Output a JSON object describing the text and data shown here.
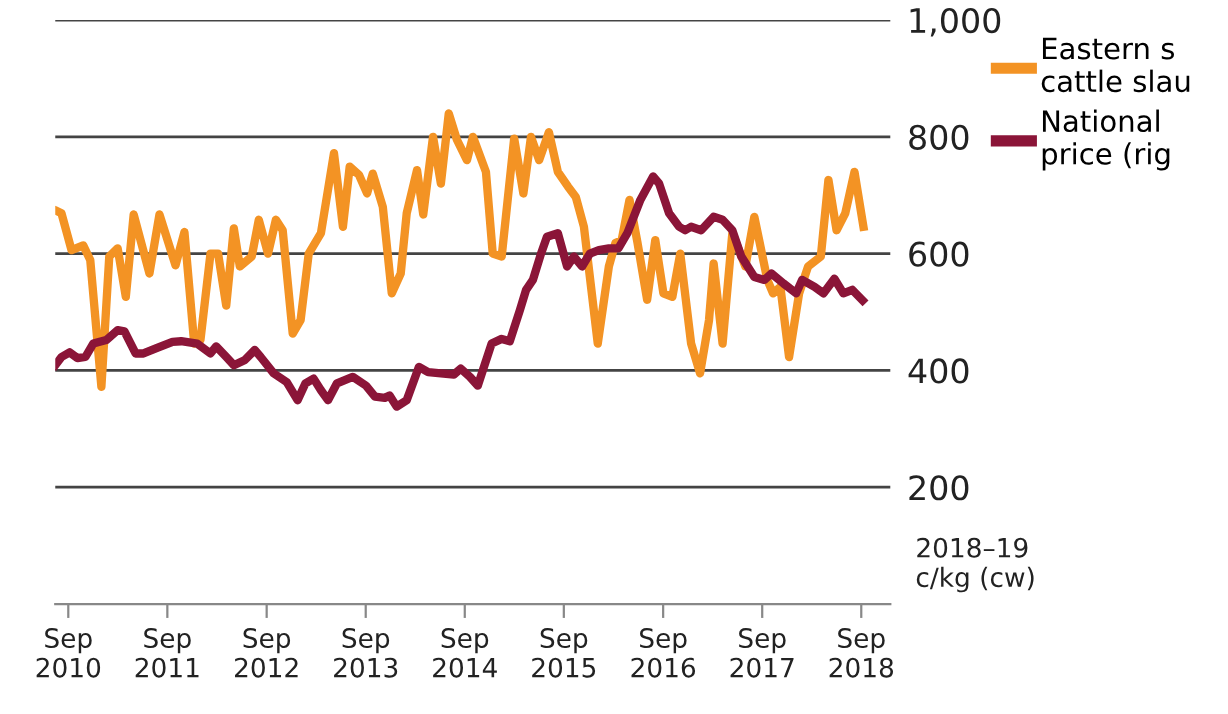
{
  "chart_data": {
    "type": "line",
    "ylabel": "2018–19\nc/kg (cw)",
    "xlim": [
      "2010-07-15",
      "2018-12-17"
    ],
    "xticks": [
      {
        "value": "2010-09-01",
        "label": "Sep\n2010"
      },
      {
        "value": "2011-09-01",
        "label": "Sep\n2011"
      },
      {
        "value": "2012-09-01",
        "label": "Sep\n2012"
      },
      {
        "value": "2013-09-01",
        "label": "Sep\n2013"
      },
      {
        "value": "2014-09-01",
        "label": "Sep\n2014"
      },
      {
        "value": "2015-09-01",
        "label": "Sep\n2015"
      },
      {
        "value": "2016-09-01",
        "label": "Sep\n2016"
      },
      {
        "value": "2017-09-01",
        "label": "Sep\n2017"
      },
      {
        "value": "2018-09-01",
        "label": "Sep\n2018"
      }
    ],
    "ylim": [
      0,
      1000
    ],
    "yticks": [
      200,
      400,
      600,
      800,
      {
        "value": 1000,
        "label": "1,000"
      }
    ],
    "grid": "y",
    "legend": "right",
    "series": [
      {
        "name": "Eastern s\ncattle slau",
        "color": "#f39324",
        "x": [
          "2010-07-15",
          "2010-08-07",
          "2010-09-13",
          "2010-10-26",
          "2010-11-21",
          "2011-01-01",
          "2011-01-30",
          "2011-03-02",
          "2011-04-01",
          "2011-04-30",
          "2011-06-27",
          "2011-08-03",
          "2011-10-01",
          "2011-11-03",
          "2011-12-09",
          "2012-01-01",
          "2012-02-07",
          "2012-03-06",
          "2012-04-05",
          "2012-05-03",
          "2012-05-25",
          "2012-07-08",
          "2012-08-03",
          "2012-09-06",
          "2012-10-05",
          "2012-10-30",
          "2012-12-06",
          "2013-01-04",
          "2013-02-03",
          "2013-03-20",
          "2013-05-07",
          "2013-06-09",
          "2013-07-04",
          "2013-08-07",
          "2013-09-06",
          "2013-09-27",
          "2013-11-03",
          "2013-12-06",
          "2014-01-08",
          "2014-01-30",
          "2014-03-09",
          "2014-04-01",
          "2014-05-07",
          "2014-06-05",
          "2014-07-04",
          "2014-08-03",
          "2014-09-09",
          "2014-10-01",
          "2014-11-18",
          "2014-12-13",
          "2015-01-15",
          "2015-03-02",
          "2015-04-05",
          "2015-05-03",
          "2015-06-02",
          "2015-07-08",
          "2015-08-10",
          "2015-09-16",
          "2015-10-15",
          "2015-11-14",
          "2016-01-04",
          "2016-02-14",
          "2016-03-09",
          "2016-04-01",
          "2016-04-30",
          "2016-05-29",
          "2016-07-04",
          "2016-08-03",
          "2016-09-02",
          "2016-10-05",
          "2016-11-03",
          "2016-12-13",
          "2017-01-15",
          "2017-02-17",
          "2017-03-06",
          "2017-04-08",
          "2017-05-14",
          "2017-07-01",
          "2017-08-03",
          "2017-09-20",
          "2017-10-11",
          "2017-11-07",
          "2017-12-09",
          "2018-01-15",
          "2018-02-17",
          "2018-04-05",
          "2018-05-03",
          "2018-06-02",
          "2018-07-04",
          "2018-08-07",
          "2018-09-09"
        ],
        "values": [
          674,
          669,
          606,
          614,
          589,
          372,
          595,
          609,
          526,
          667,
          566,
          667,
          580,
          637,
          446,
          452,
          600,
          600,
          511,
          643,
          578,
          595,
          658,
          600,
          658,
          640,
          463,
          486,
          600,
          635,
          772,
          646,
          749,
          735,
          703,
          737,
          680,
          532,
          566,
          669,
          743,
          667,
          800,
          720,
          840,
          795,
          760,
          800,
          740,
          600,
          595,
          797,
          703,
          800,
          760,
          808,
          740,
          715,
          697,
          646,
          446,
          578,
          618,
          623,
          692,
          620,
          521,
          623,
          532,
          526,
          600,
          446,
          395,
          486,
          583,
          446,
          635,
          578,
          663,
          555,
          532,
          543,
          423,
          532,
          578,
          595,
          726,
          640,
          669,
          740,
          646
        ]
      },
      {
        "name": "National\nprice (rig",
        "color": "#8b1538",
        "x": [
          "2010-07-15",
          "2010-08-07",
          "2010-09-06",
          "2010-10-05",
          "2010-11-03",
          "2010-12-02",
          "2011-01-19",
          "2011-03-02",
          "2011-03-27",
          "2011-05-07",
          "2011-06-05",
          "2011-07-23",
          "2011-09-20",
          "2011-10-22",
          "2011-12-20",
          "2012-02-07",
          "2012-02-28",
          "2012-04-05",
          "2012-05-03",
          "2012-06-13",
          "2012-07-19",
          "2012-08-10",
          "2012-09-27",
          "2012-11-14",
          "2012-12-24",
          "2013-01-22",
          "2013-02-21",
          "2013-03-20",
          "2013-04-15",
          "2013-05-18",
          "2013-07-15",
          "2013-09-02",
          "2013-10-05",
          "2013-11-10",
          "2013-11-28",
          "2013-12-24",
          "2014-01-30",
          "2014-03-16",
          "2014-04-19",
          "2014-06-05",
          "2014-07-23",
          "2014-08-17",
          "2014-09-20",
          "2014-10-19",
          "2014-12-09",
          "2015-01-15",
          "2015-02-14",
          "2015-03-23",
          "2015-04-15",
          "2015-05-10",
          "2015-06-09",
          "2015-07-01",
          "2015-08-10",
          "2015-09-13",
          "2015-10-08",
          "2015-11-07",
          "2015-12-06",
          "2016-01-08",
          "2016-02-14",
          "2016-03-20",
          "2016-04-22",
          "2016-06-09",
          "2016-07-26",
          "2016-08-17",
          "2016-09-23",
          "2016-10-30",
          "2016-11-21",
          "2016-12-13",
          "2017-01-19",
          "2017-03-06",
          "2017-04-08",
          "2017-05-14",
          "2017-06-16",
          "2017-08-03",
          "2017-09-09",
          "2017-10-05",
          "2017-11-18",
          "2018-01-04",
          "2018-01-26",
          "2018-03-13",
          "2018-04-15",
          "2018-05-25",
          "2018-06-27",
          "2018-07-30",
          "2018-09-06"
        ],
        "values": [
          409,
          423,
          431,
          421,
          423,
          446,
          452,
          469,
          467,
          429,
          429,
          438,
          449,
          450,
          446,
          429,
          441,
          423,
          409,
          418,
          435,
          423,
          395,
          380,
          349,
          378,
          386,
          366,
          349,
          378,
          389,
          374,
          355,
          353,
          357,
          338,
          349,
          406,
          397,
          395,
          393,
          403,
          389,
          374,
          446,
          454,
          450,
          503,
          538,
          555,
          600,
          629,
          635,
          578,
          595,
          578,
          600,
          606,
          609,
          609,
          635,
          692,
          732,
          720,
          669,
          646,
          640,
          646,
          640,
          663,
          658,
          640,
          595,
          560,
          555,
          566,
          549,
          532,
          555,
          543,
          532,
          557,
          532,
          538,
          520
        ]
      }
    ]
  }
}
